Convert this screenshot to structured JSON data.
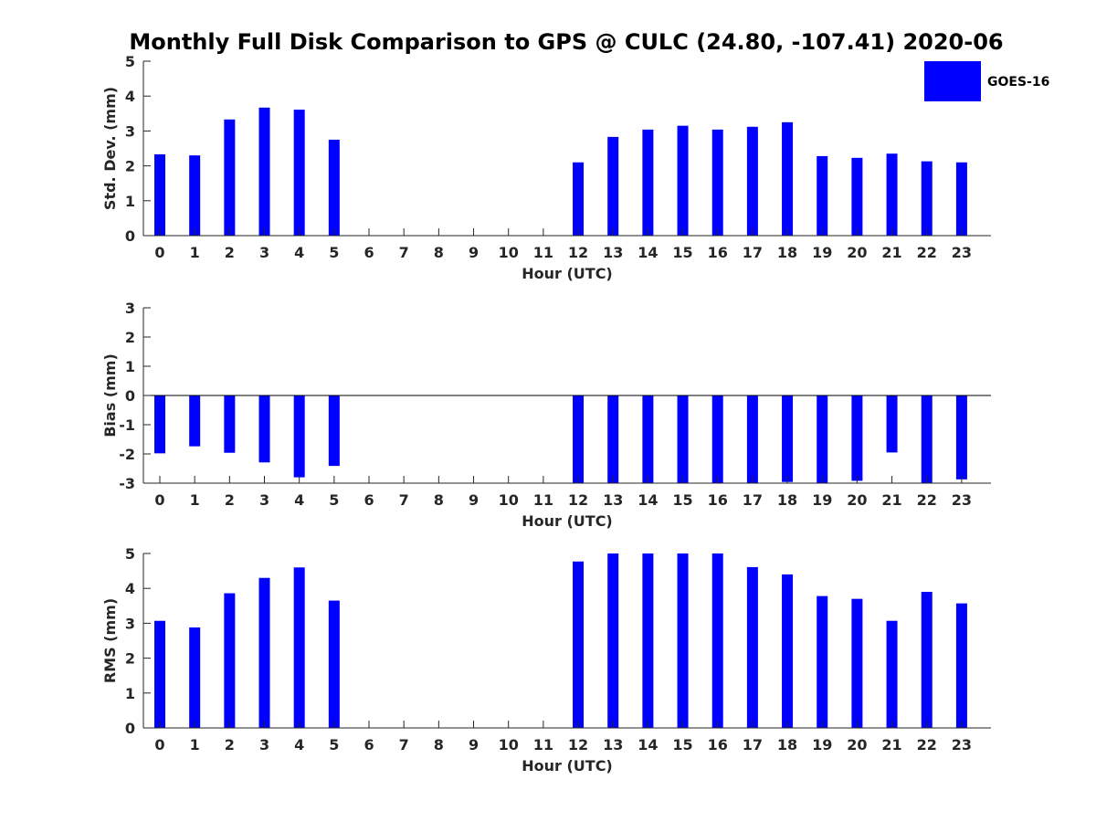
{
  "chart_data": {
    "title": "Monthly Full Disk Comparison to GPS @ CULC (24.80, -107.41) 2020-06",
    "legend": {
      "label": "GOES-16",
      "color": "#0000ff",
      "position": "top-right"
    },
    "bar_color": "#0000ff",
    "panels": [
      {
        "type": "bar",
        "ylabel": "Std. Dev. (mm)",
        "xlabel": "Hour (UTC)",
        "ylim": [
          0,
          5
        ],
        "yticks": [
          "0",
          "1",
          "2",
          "3",
          "4",
          "5"
        ],
        "categories": [
          "0",
          "1",
          "2",
          "3",
          "4",
          "5",
          "6",
          "7",
          "8",
          "9",
          "10",
          "11",
          "12",
          "13",
          "14",
          "15",
          "16",
          "17",
          "18",
          "19",
          "20",
          "21",
          "22",
          "23"
        ],
        "values": [
          2.33,
          2.3,
          3.33,
          3.67,
          3.61,
          2.75,
          null,
          null,
          null,
          null,
          null,
          null,
          2.1,
          2.83,
          3.04,
          3.15,
          3.04,
          3.12,
          3.25,
          2.28,
          2.23,
          2.35,
          2.13,
          2.1
        ]
      },
      {
        "type": "bar",
        "ylabel": "Bias (mm)",
        "xlabel": "Hour (UTC)",
        "ylim": [
          -3,
          3
        ],
        "yticks": [
          "-3",
          "-2",
          "-1",
          "0",
          "1",
          "2",
          "3"
        ],
        "zero_line": true,
        "categories": [
          "0",
          "1",
          "2",
          "3",
          "4",
          "5",
          "6",
          "7",
          "8",
          "9",
          "10",
          "11",
          "12",
          "13",
          "14",
          "15",
          "16",
          "17",
          "18",
          "19",
          "20",
          "21",
          "22",
          "23"
        ],
        "values": [
          -1.98,
          -1.74,
          -1.96,
          -2.29,
          -2.8,
          -2.41,
          null,
          null,
          null,
          null,
          null,
          null,
          -3.0,
          -3.0,
          -3.0,
          -3.0,
          -3.0,
          -3.0,
          -2.96,
          -3.0,
          -2.92,
          -1.95,
          -3.0,
          -2.87
        ]
      },
      {
        "type": "bar",
        "ylabel": "RMS (mm)",
        "xlabel": "Hour (UTC)",
        "ylim": [
          0,
          5
        ],
        "yticks": [
          "0",
          "1",
          "2",
          "3",
          "4",
          "5"
        ],
        "categories": [
          "0",
          "1",
          "2",
          "3",
          "4",
          "5",
          "6",
          "7",
          "8",
          "9",
          "10",
          "11",
          "12",
          "13",
          "14",
          "15",
          "16",
          "17",
          "18",
          "19",
          "20",
          "21",
          "22",
          "23"
        ],
        "values": [
          3.07,
          2.88,
          3.86,
          4.3,
          4.6,
          3.65,
          null,
          null,
          null,
          null,
          null,
          null,
          4.77,
          5.0,
          5.0,
          5.0,
          5.0,
          4.61,
          4.4,
          3.78,
          3.7,
          3.07,
          3.9,
          3.57
        ]
      }
    ]
  }
}
